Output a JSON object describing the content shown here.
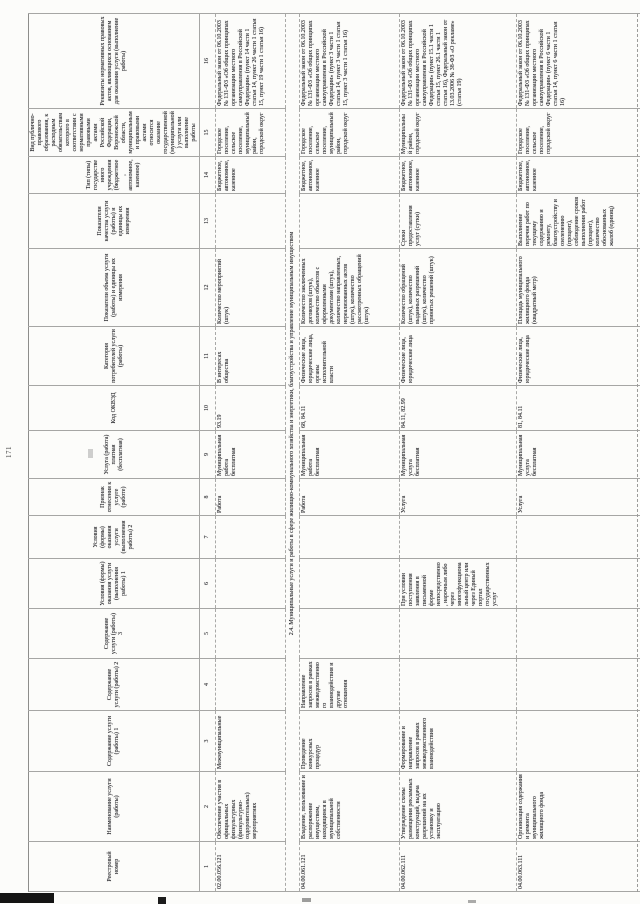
{
  "page": {
    "number": "171"
  },
  "table": {
    "headers": [
      "Реестровый номер",
      "Наименование услуги (работы)",
      "Содержание услуги (работы) 1",
      "Содержание услуги (работы) 2",
      "Содержание услуги (работы) 3",
      "Условия (формы) оказания услуги (выполнения работы) 1",
      "Условия (формы) оказания услуги (выполнения работы) 2",
      "Признак отнесения к услуге (работе)",
      "Услуга (работа) платная (бесплатная)",
      "Код ОКВЭД",
      "Категория потребителей услуги (работы)",
      "Показатели объема услуги (работы) и единицы их измерения",
      "Показатели качества услуги (работы) и единицы их измерения",
      "Тип (типы) государственного учреждения (бюджетное, автономное, казенное)",
      "Вид публично-правового образования, к расходным обязательствам которого в соответствии с нормативными правовыми актами Российской Федерации, Воронежской области, муниципальными правовыми актами относится оказание государственной (муниципальной) услуги или выполнение работы",
      "Реквизиты нормативных правовых актов, являющихся основанием для оказания услуги (выполнение работы)"
    ],
    "column_numbers": [
      "1",
      "2",
      "3",
      "4",
      "5",
      "6",
      "7",
      "8",
      "9",
      "10",
      "11",
      "12",
      "13",
      "14",
      "15",
      "16"
    ],
    "body_rows": [
      {
        "type": "data",
        "cells": [
          "02.00.056.121",
          "Обеспечение участия в официальных физкультурных (физкультурно-оздоровительных) мероприятиях",
          "Межмуниципальные",
          "",
          "",
          "",
          "",
          "Работа",
          "Муниципальная работа бесплатная",
          "93.19",
          "В интересах общества",
          "Количество мероприятий (штук)",
          "",
          "Бюджетное, автономное, казенное",
          "Городское поселение, сельское поселение, муниципальный район, городской округ",
          "Федеральный закон от 06.10.2003 № 131-ФЗ «Об общих принципах организации местного самоуправления в Российской Федерации» (пункт 14 части 1 статьи 14, пункт 26 части 1 статьи 15, пункт 19 части 1 статьи 16)"
        ]
      },
      {
        "type": "section",
        "label": "2.4. Муниципальные услуги и работы в сфере жилищно-коммунального хозяйства и энергетики, благоустройства и управление муниципальным имуществом"
      },
      {
        "type": "data",
        "cells": [
          "04.00.061.121",
          "Владение, пользование и распоряжение имуществом, находящимся в муниципальной собственности",
          "Проведение конкурсных процедур",
          "Направление запросов в рамках межведомственного взаимодействия и другие отношения",
          "",
          "",
          "",
          "Работа",
          "Муниципальная работа бесплатная",
          "68, 84.11",
          "Физические лица, юридические лица, органы исполнительной власти",
          "Количество заключенных договоров (штук), количество объектов с оформленными документами (штук), количество направленных, нереализованных актов (штук), количество рассмотренных обращений (штук)",
          "",
          "Бюджетное, автономное, казенное",
          "Городское поселение, сельское поселение, муниципальный район, городской округ",
          "Федеральный закон от 06.10.2003 № 131-ФЗ «Об общих принципах организации местного самоуправления в Российской Федерации» (пункт 3 части 1 статьи 14, пункт 3 части 1 статьи 15, пункт 3 части 1 статьи 16)"
        ]
      },
      {
        "type": "data",
        "cells": [
          "04.00.062.111",
          "Утверждение схемы размещения рекламных конструкций, выдача разрешений на их установку и эксплуатацию",
          "Формирование и направление запросов в рамках межведомственного взаимодействия",
          "",
          "",
          "При условии поступления заявления в письменной форме непосредственно, нарочным либо через многофункциональный центр или через Единый портал государственных услуг",
          "",
          "Услуга",
          "Муниципальная услуга бесплатная",
          "84.11, 82.99",
          "Физические лица, юридические лица",
          "Количество обращений (штук), количество выданных разрешений (штук), количество принятых решений (штук)",
          "Сроки предоставления услуг (сутки)",
          "Бюджетное, автономное, казенное",
          "Муниципальный район, городской округ",
          "Федеральный закон от 06.10.2003 № 131-ФЗ «Об общих принципах организации местного самоуправления в Российской Федерации» (пункт 15.1 части 1 статьи 15, пункт 26.1 части 1 статьи 16), Федеральный закон от 13.03.2006 № 38-ФЗ «О рекламе» (статья 19)"
        ]
      },
      {
        "type": "data",
        "cells": [
          "04.00.063.111",
          "Организация содержания и ремонта муниципального жилищного фонда",
          "",
          "",
          "",
          "",
          "",
          "Услуга",
          "Муниципальная услуга бесплатная",
          "81, 84.11",
          "Физические лица, юридические лица",
          "Площадь муниципального жилищного фонда (квадратный метр)",
          "Выполнение перечня работ по текущему содержанию и ремонту, благоустройству и озеленению (процент), соблюдение сроков выполнения работ (процент), количество обоснованных жалоб (единиц)",
          "Бюджетное, автономное, казенное",
          "Городское поселение, сельское поселение, городской округ",
          "Федеральный закон от 06.10.2003 № 131-ФЗ «Об общих принципах организации местного самоуправления в Российской Федерации» (пункт 6 части 1 статьи 14, пункт 6 части 1 статьи 16)"
        ]
      }
    ]
  }
}
